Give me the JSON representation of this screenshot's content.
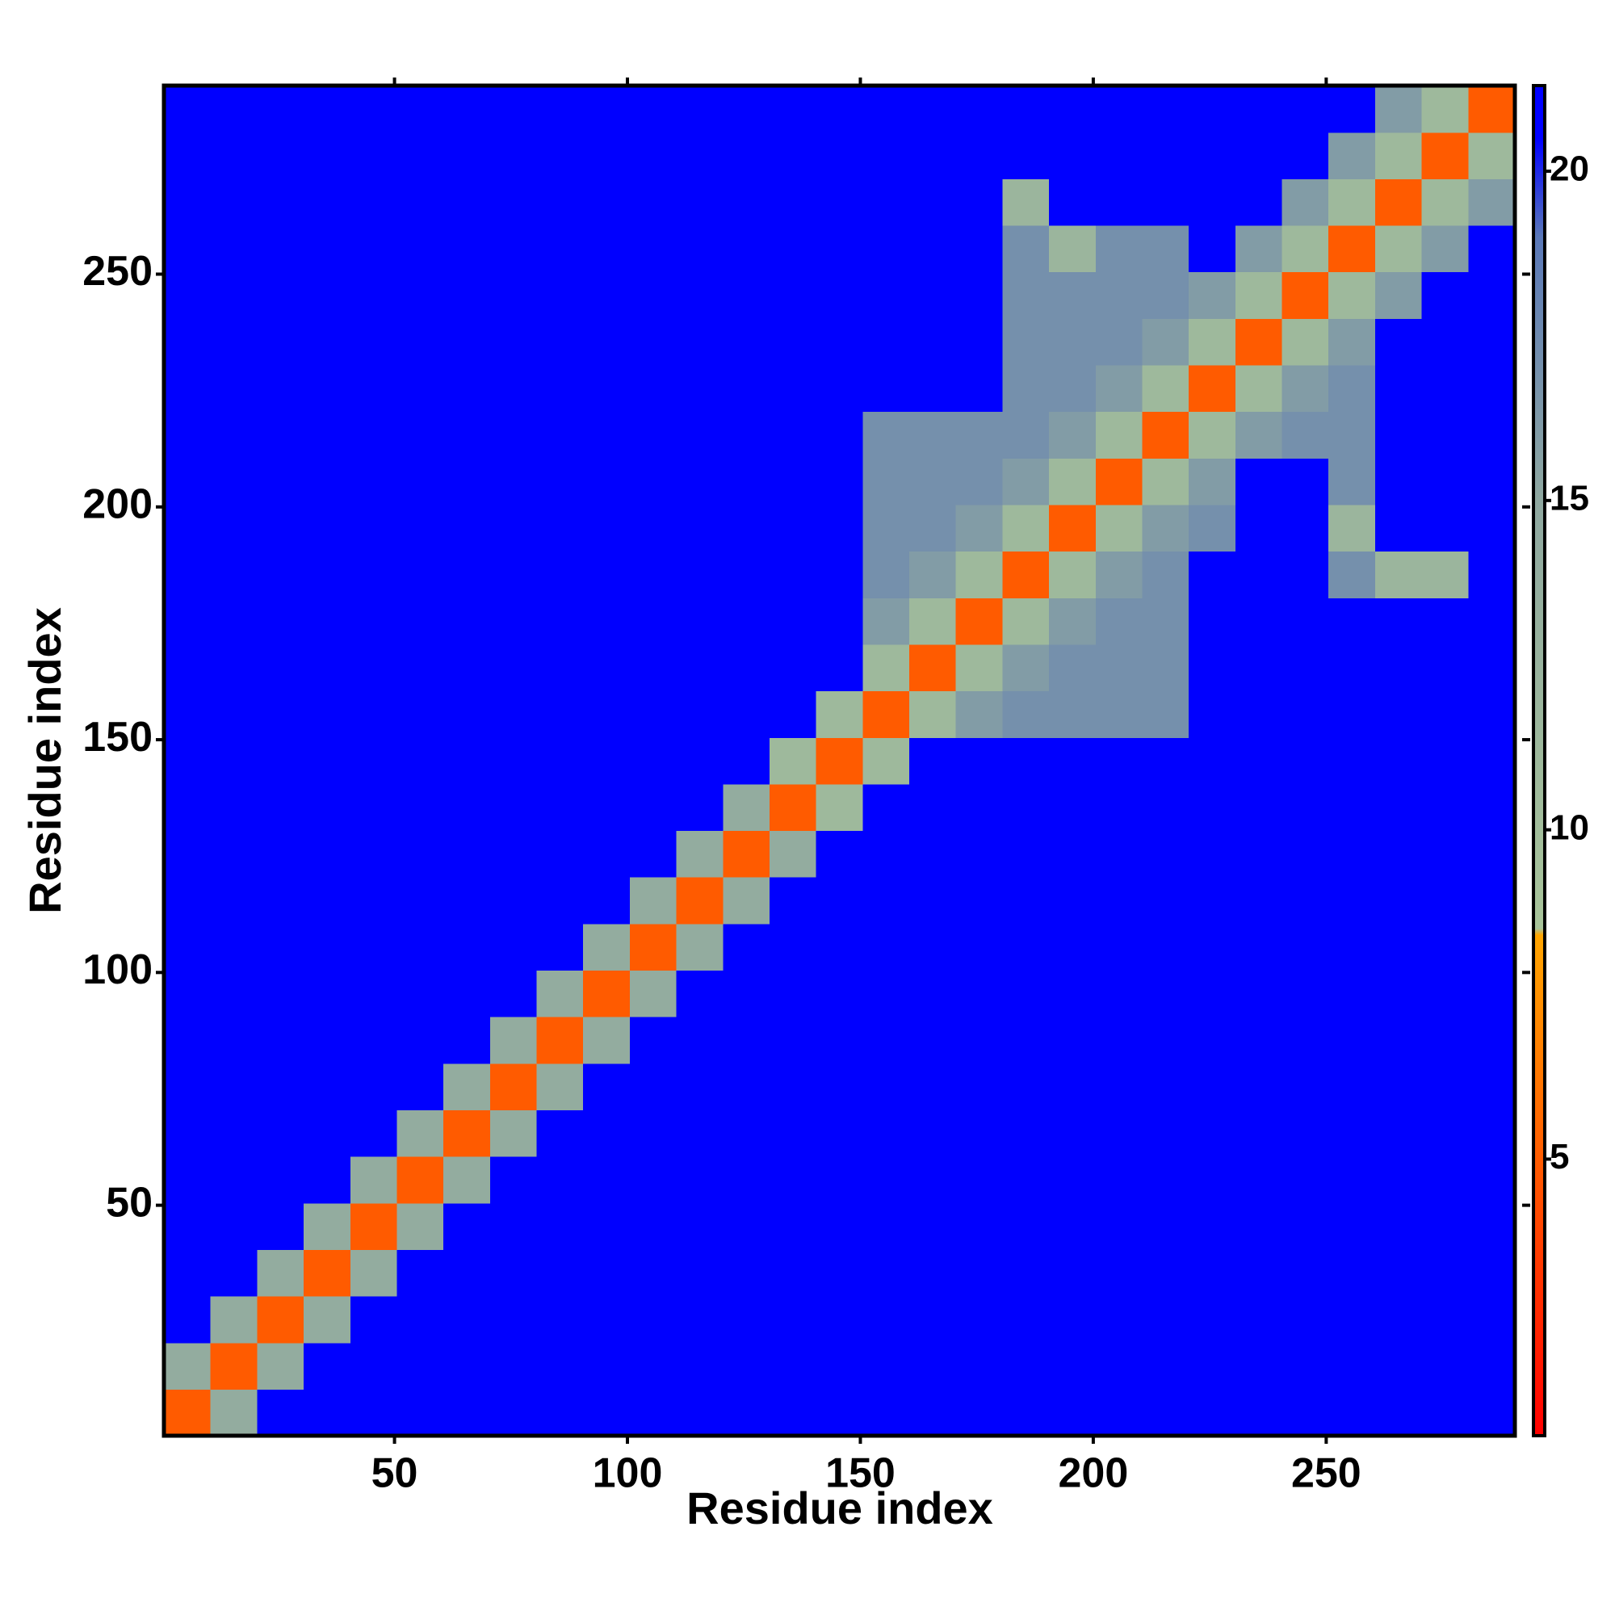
{
  "chart_data": {
    "type": "heatmap",
    "xlabel": "Residue index",
    "ylabel": "Residue index",
    "xlim": [
      0.5,
      290.5
    ],
    "ylim": [
      0.5,
      290.5
    ],
    "xticks": [
      50,
      100,
      150,
      200,
      250
    ],
    "yticks": [
      50,
      100,
      150,
      200,
      250
    ],
    "x_bins": [
      0.5,
      10.5,
      20.5,
      30.5,
      40.5,
      50.5,
      60.5,
      70.5,
      80.5,
      90.5,
      100.5,
      110.5,
      120.5,
      130.5,
      140.5,
      150.5,
      160.5,
      170.5,
      180.5,
      190.5,
      200.5,
      210.5,
      220.5,
      230.5,
      240.5,
      250.5,
      260.5,
      270.5,
      280.5,
      290.5
    ],
    "y_bins": [
      0.5,
      10.5,
      20.5,
      30.5,
      40.5,
      50.5,
      60.5,
      70.5,
      80.5,
      90.5,
      100.5,
      110.5,
      120.5,
      130.5,
      140.5,
      150.5,
      160.5,
      170.5,
      180.5,
      190.5,
      200.5,
      210.5,
      220.5,
      230.5,
      240.5,
      250.5,
      260.5,
      270.5,
      280.5,
      290.5
    ],
    "zlim": [
      0.8,
      21.3
    ],
    "zticks": [
      5,
      10,
      15,
      20
    ],
    "colorscale": [
      [
        0.8,
        "#ff0000"
      ],
      [
        8.4,
        "#ffa500"
      ],
      [
        8.5,
        "#a8c49a"
      ],
      [
        15,
        "#8fa8a0"
      ],
      [
        19,
        "#5a78b8"
      ],
      [
        20.5,
        "#0000ff"
      ],
      [
        21.3,
        "#0000ff"
      ]
    ],
    "values": [
      [
        5,
        14,
        21,
        21,
        21,
        21,
        21,
        21,
        21,
        21,
        21,
        21,
        21,
        21,
        21,
        21,
        21,
        21,
        21,
        21,
        21,
        21,
        21,
        21,
        21,
        21,
        21,
        21,
        21
      ],
      [
        14,
        5,
        14,
        21,
        21,
        21,
        21,
        21,
        21,
        21,
        21,
        21,
        21,
        21,
        21,
        21,
        21,
        21,
        21,
        21,
        21,
        21,
        21,
        21,
        21,
        21,
        21,
        21,
        21
      ],
      [
        21,
        14,
        5,
        14,
        21,
        21,
        21,
        21,
        21,
        21,
        21,
        21,
        21,
        21,
        21,
        21,
        21,
        21,
        21,
        21,
        21,
        21,
        21,
        21,
        21,
        21,
        21,
        21,
        21
      ],
      [
        21,
        21,
        14,
        5,
        14,
        21,
        21,
        21,
        21,
        21,
        21,
        21,
        21,
        21,
        21,
        21,
        21,
        21,
        21,
        21,
        21,
        21,
        21,
        21,
        21,
        21,
        21,
        21,
        21
      ],
      [
        21,
        21,
        21,
        14,
        5,
        14,
        21,
        21,
        21,
        21,
        21,
        21,
        21,
        21,
        21,
        21,
        21,
        21,
        21,
        21,
        21,
        21,
        21,
        21,
        21,
        21,
        21,
        21,
        21
      ],
      [
        21,
        21,
        21,
        21,
        14,
        5,
        14,
        21,
        21,
        21,
        21,
        21,
        21,
        21,
        21,
        21,
        21,
        21,
        21,
        21,
        21,
        21,
        21,
        21,
        21,
        21,
        21,
        21,
        21
      ],
      [
        21,
        21,
        21,
        21,
        21,
        14,
        5,
        14,
        21,
        21,
        21,
        21,
        21,
        21,
        21,
        21,
        21,
        21,
        21,
        21,
        21,
        21,
        21,
        21,
        21,
        21,
        21,
        21,
        21
      ],
      [
        21,
        21,
        21,
        21,
        21,
        21,
        14,
        5,
        14,
        21,
        21,
        21,
        21,
        21,
        21,
        21,
        21,
        21,
        21,
        21,
        21,
        21,
        21,
        21,
        21,
        21,
        21,
        21,
        21
      ],
      [
        21,
        21,
        21,
        21,
        21,
        21,
        21,
        14,
        5,
        14,
        21,
        21,
        21,
        21,
        21,
        21,
        21,
        21,
        21,
        21,
        21,
        21,
        21,
        21,
        21,
        21,
        21,
        21,
        21
      ],
      [
        21,
        21,
        21,
        21,
        21,
        21,
        21,
        21,
        14,
        5,
        14,
        21,
        21,
        21,
        21,
        21,
        21,
        21,
        21,
        21,
        21,
        21,
        21,
        21,
        21,
        21,
        21,
        21,
        21
      ],
      [
        21,
        21,
        21,
        21,
        21,
        21,
        21,
        21,
        21,
        14,
        5,
        14,
        21,
        21,
        21,
        21,
        21,
        21,
        21,
        21,
        21,
        21,
        21,
        21,
        21,
        21,
        21,
        21,
        21
      ],
      [
        21,
        21,
        21,
        21,
        21,
        21,
        21,
        21,
        21,
        21,
        14,
        5,
        14,
        21,
        21,
        21,
        21,
        21,
        21,
        21,
        21,
        21,
        21,
        21,
        21,
        21,
        21,
        21,
        21
      ],
      [
        21,
        21,
        21,
        21,
        21,
        21,
        21,
        21,
        21,
        21,
        21,
        14,
        5,
        14,
        21,
        21,
        21,
        21,
        21,
        21,
        21,
        21,
        21,
        21,
        21,
        21,
        21,
        21,
        21
      ],
      [
        21,
        21,
        21,
        21,
        21,
        21,
        21,
        21,
        21,
        21,
        21,
        21,
        14,
        5,
        11,
        21,
        21,
        21,
        21,
        21,
        21,
        21,
        21,
        21,
        21,
        21,
        21,
        21,
        21
      ],
      [
        21,
        21,
        21,
        21,
        21,
        21,
        21,
        21,
        21,
        21,
        21,
        21,
        21,
        11,
        5,
        11,
        21,
        21,
        21,
        21,
        21,
        21,
        21,
        21,
        21,
        21,
        21,
        21,
        21
      ],
      [
        21,
        21,
        21,
        21,
        21,
        21,
        21,
        21,
        21,
        21,
        21,
        21,
        21,
        21,
        11,
        5,
        11,
        16,
        17,
        17,
        17,
        17,
        21,
        21,
        21,
        21,
        21,
        21,
        21
      ],
      [
        21,
        21,
        21,
        21,
        21,
        21,
        21,
        21,
        21,
        21,
        21,
        21,
        21,
        21,
        21,
        11,
        5,
        11,
        16,
        17,
        17,
        17,
        21,
        21,
        21,
        21,
        21,
        21,
        21
      ],
      [
        21,
        21,
        21,
        21,
        21,
        21,
        21,
        21,
        21,
        21,
        21,
        21,
        21,
        21,
        21,
        16,
        11,
        5,
        11,
        16,
        17,
        17,
        21,
        21,
        21,
        21,
        21,
        21,
        21
      ],
      [
        21,
        21,
        21,
        21,
        21,
        21,
        21,
        21,
        21,
        21,
        21,
        21,
        21,
        21,
        21,
        17,
        16,
        11,
        5,
        11,
        16,
        17,
        21,
        21,
        21,
        17,
        12,
        12,
        21
      ],
      [
        21,
        21,
        21,
        21,
        21,
        21,
        21,
        21,
        21,
        21,
        21,
        21,
        21,
        21,
        21,
        17,
        17,
        16,
        11,
        5,
        11,
        16,
        17,
        21,
        21,
        12,
        21,
        21,
        21
      ],
      [
        21,
        21,
        21,
        21,
        21,
        21,
        21,
        21,
        21,
        21,
        21,
        21,
        21,
        21,
        21,
        17,
        17,
        17,
        16,
        11,
        5,
        11,
        16,
        21,
        21,
        17,
        21,
        21,
        21
      ],
      [
        21,
        21,
        21,
        21,
        21,
        21,
        21,
        21,
        21,
        21,
        21,
        21,
        21,
        21,
        21,
        17,
        17,
        17,
        17,
        16,
        11,
        5,
        11,
        16,
        17,
        17,
        21,
        21,
        21
      ],
      [
        21,
        21,
        21,
        21,
        21,
        21,
        21,
        21,
        21,
        21,
        21,
        21,
        21,
        21,
        21,
        21,
        21,
        21,
        17,
        17,
        16,
        11,
        5,
        11,
        16,
        17,
        21,
        21,
        21
      ],
      [
        21,
        21,
        21,
        21,
        21,
        21,
        21,
        21,
        21,
        21,
        21,
        21,
        21,
        21,
        21,
        21,
        21,
        21,
        17,
        17,
        17,
        16,
        11,
        5,
        11,
        16,
        21,
        21,
        21
      ],
      [
        21,
        21,
        21,
        21,
        21,
        21,
        21,
        21,
        21,
        21,
        21,
        21,
        21,
        21,
        21,
        21,
        21,
        21,
        17,
        17,
        17,
        17,
        16,
        11,
        5,
        11,
        16,
        21,
        21
      ],
      [
        21,
        21,
        21,
        21,
        21,
        21,
        21,
        21,
        21,
        21,
        21,
        21,
        21,
        21,
        21,
        21,
        21,
        21,
        17,
        12,
        17,
        17,
        21,
        16,
        11,
        5,
        11,
        16,
        21
      ],
      [
        21,
        21,
        21,
        21,
        21,
        21,
        21,
        21,
        21,
        21,
        21,
        21,
        21,
        21,
        21,
        21,
        21,
        21,
        12,
        21,
        21,
        21,
        21,
        21,
        16,
        11,
        5,
        11,
        16
      ],
      [
        21,
        21,
        21,
        21,
        21,
        21,
        21,
        21,
        21,
        21,
        21,
        21,
        21,
        21,
        21,
        21,
        21,
        21,
        21,
        21,
        21,
        21,
        21,
        21,
        21,
        16,
        11,
        5,
        11
      ],
      [
        21,
        21,
        21,
        21,
        21,
        21,
        21,
        21,
        21,
        21,
        21,
        21,
        21,
        21,
        21,
        21,
        21,
        21,
        21,
        21,
        21,
        21,
        21,
        21,
        21,
        21,
        16,
        11,
        5
      ]
    ]
  }
}
